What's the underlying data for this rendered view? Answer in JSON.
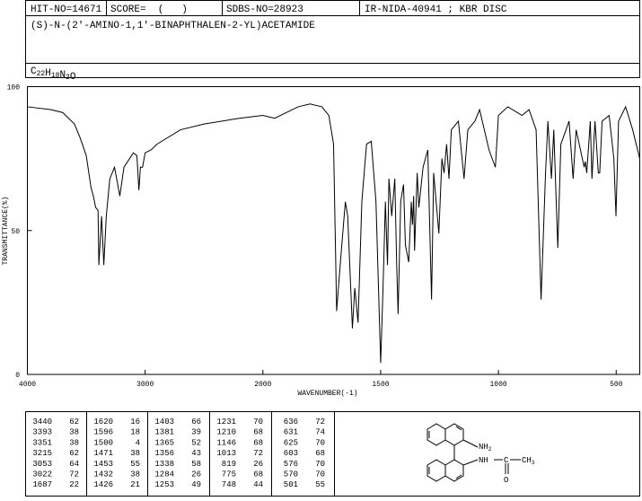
{
  "header": {
    "hit_no": "HIT-NO=14671",
    "score": "SCORE=  (   )",
    "sdbs_no": "SDBS-NO=28923",
    "ir_no": "IR-NIDA-40941 ; KBR DISC",
    "name": "(S)-N-(2'-AMINO-1,1'-BINAPHTHALEN-2-YL)ACETAMIDE",
    "formula": [
      {
        "el": "C",
        "n": "22"
      },
      {
        "el": "H",
        "n": "18"
      },
      {
        "el": "N",
        "n": "2"
      },
      {
        "el": "O"
      }
    ]
  },
  "chart_data": {
    "type": "line",
    "xlabel": "WAVENUMBER(-1)",
    "ylabel": "TRANSMITTANCE(%)",
    "color": "#000000",
    "xlim": [
      4000,
      400
    ],
    "x_scale_break": 2000,
    "x_scale_ratio": 2,
    "ylim": [
      0,
      100
    ],
    "xticks": [
      4000,
      3000,
      2000,
      1500,
      1000,
      500
    ],
    "yticks": [
      0,
      50,
      100
    ],
    "x": [
      4000,
      3800,
      3700,
      3600,
      3550,
      3500,
      3460,
      3440,
      3420,
      3400,
      3393,
      3370,
      3351,
      3330,
      3300,
      3260,
      3215,
      3180,
      3100,
      3070,
      3053,
      3040,
      3022,
      3000,
      2950,
      2900,
      2700,
      2500,
      2200,
      2000,
      1950,
      1900,
      1850,
      1800,
      1750,
      1720,
      1700,
      1687,
      1670,
      1650,
      1640,
      1620,
      1610,
      1596,
      1580,
      1560,
      1540,
      1520,
      1500,
      1490,
      1480,
      1471,
      1465,
      1453,
      1440,
      1432,
      1426,
      1415,
      1403,
      1395,
      1381,
      1370,
      1365,
      1360,
      1356,
      1345,
      1338,
      1320,
      1300,
      1284,
      1275,
      1253,
      1240,
      1231,
      1220,
      1210,
      1200,
      1170,
      1146,
      1130,
      1100,
      1080,
      1040,
      1013,
      1000,
      960,
      900,
      870,
      840,
      819,
      800,
      790,
      775,
      765,
      748,
      735,
      700,
      683,
      670,
      636,
      631,
      625,
      610,
      603,
      590,
      576,
      570,
      560,
      530,
      510,
      501,
      490,
      460,
      430,
      400
    ],
    "values": [
      93,
      92,
      91,
      87,
      82,
      76,
      65,
      62,
      58,
      57,
      38,
      55,
      38,
      55,
      68,
      72,
      62,
      72,
      77,
      76,
      64,
      72,
      72,
      77,
      78,
      80,
      85,
      87,
      89,
      90,
      89,
      91,
      93,
      94,
      93,
      90,
      80,
      22,
      40,
      60,
      55,
      16,
      30,
      18,
      60,
      80,
      81,
      60,
      4,
      30,
      60,
      38,
      68,
      55,
      68,
      38,
      21,
      60,
      66,
      45,
      39,
      60,
      52,
      62,
      43,
      70,
      58,
      72,
      78,
      26,
      70,
      49,
      75,
      70,
      80,
      68,
      85,
      88,
      68,
      85,
      88,
      92,
      78,
      72,
      90,
      93,
      90,
      92,
      85,
      26,
      70,
      88,
      68,
      85,
      44,
      80,
      88,
      68,
      85,
      72,
      74,
      70,
      88,
      68,
      88,
      70,
      70,
      88,
      90,
      75,
      55,
      88,
      93,
      85,
      75
    ]
  },
  "peak_table": {
    "columns": [
      [
        [
          3440,
          62
        ],
        [
          3393,
          38
        ],
        [
          3351,
          38
        ],
        [
          3215,
          62
        ],
        [
          3053,
          64
        ],
        [
          3022,
          72
        ],
        [
          1687,
          22
        ]
      ],
      [
        [
          1620,
          16
        ],
        [
          1596,
          18
        ],
        [
          1500,
          4
        ],
        [
          1471,
          38
        ],
        [
          1453,
          55
        ],
        [
          1432,
          38
        ],
        [
          1426,
          21
        ]
      ],
      [
        [
          1403,
          66
        ],
        [
          1381,
          39
        ],
        [
          1365,
          52
        ],
        [
          1356,
          43
        ],
        [
          1338,
          58
        ],
        [
          1284,
          26
        ],
        [
          1253,
          49
        ]
      ],
      [
        [
          1231,
          70
        ],
        [
          1210,
          68
        ],
        [
          1146,
          68
        ],
        [
          1013,
          72
        ],
        [
          819,
          26
        ],
        [
          775,
          68
        ],
        [
          748,
          44
        ]
      ],
      [
        [
          636,
          72
        ],
        [
          631,
          74
        ],
        [
          625,
          70
        ],
        [
          603,
          68
        ],
        [
          576,
          70
        ],
        [
          570,
          70
        ],
        [
          501,
          55
        ]
      ]
    ]
  },
  "structure": {
    "nh2": {
      "text": "NH",
      "sub": "2"
    },
    "nh": "NH",
    "c": "C",
    "ch3": {
      "text": "CH",
      "sub": "3"
    },
    "o": "O"
  }
}
